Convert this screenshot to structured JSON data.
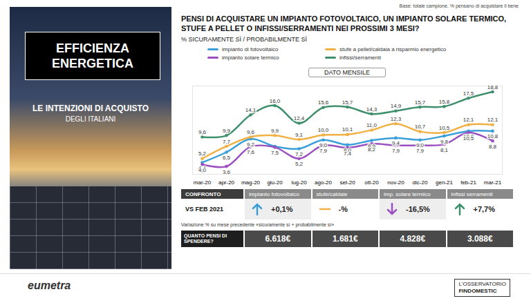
{
  "panel": {
    "title": "EFFICIENZA ENERGETICA",
    "subtitle_lines": [
      "LE INTENZIONI DI ACQUISTO",
      "DEGLI ITALIANI"
    ]
  },
  "base_note": "Base: totale campione. % pensano di acquistare il bene",
  "chart_data": {
    "type": "line",
    "title": "PENSI DI ACQUISTARE UN IMPIANTO FOTOVOLTAICO, UN IMPIANTO SOLARE TERMICO,  STUFE A PELLET O INFISSI/SERRAMENTI NEI PROSSIMI 3 MESI?",
    "subtitle": "% SICURAMENTE SÌ / PROBABILMENTE SÌ",
    "annotation": "DATO MENSILE",
    "categories": [
      "mar-20",
      "apr-20",
      "mag-20",
      "giu-20",
      "lug-20",
      "ago-20",
      "set-20",
      "ott-20",
      "nov-20",
      "dic-20",
      "gen-21",
      "feb-21",
      "mar-21"
    ],
    "ylim": [
      2,
      20
    ],
    "yticks": [],
    "tick_labels": "x",
    "data_labels": true,
    "legend": "top",
    "marker": "circle",
    "series": [
      {
        "name": "impianto di fotovoltaico",
        "color": "#3a9fd9",
        "values": [
          4.4,
          6.5,
          9.2,
          7.7,
          7.2,
          9.0,
          8.0,
          8.9,
          9.4,
          9.0,
          9.8,
          10.8,
          10.8
        ],
        "value_labels": [
          "4,4",
          "6,5",
          "9,2",
          "7,7",
          "7,2",
          "9,0",
          "8,0",
          "8,9",
          "9,4",
          "9,0",
          "9,8",
          "10,8",
          "10,8"
        ]
      },
      {
        "name": "stufe a pellet/caldaia a risparmio energetico",
        "color": "#f0b043",
        "values": [
          5.2,
          7.7,
          9.6,
          9.9,
          9.1,
          10.0,
          10.1,
          11.0,
          12.3,
          10.7,
          10.5,
          12.1,
          12.1
        ],
        "value_labels": [
          "5,2",
          "7,7",
          "9,6",
          "9,9",
          "9,1",
          "10,0",
          "10,1",
          "11,0",
          "12,3",
          "10,7",
          "10,5",
          "12,1",
          "12,1"
        ]
      },
      {
        "name": "impianto solare termico",
        "color": "#9a4fc0",
        "values": [
          4.0,
          3.6,
          7.6,
          7.5,
          5.2,
          7.9,
          7.4,
          8.2,
          7.9,
          7.9,
          8.1,
          10.5,
          8.8
        ],
        "value_labels": [
          "4,0",
          "3,6",
          "7,6",
          "7,5",
          "5,2",
          "7,9",
          "7,4",
          "8,2",
          "7,9",
          "7,9",
          "8,1",
          "10,5",
          "8,8"
        ]
      },
      {
        "name": "infissi/serramenti",
        "color": "#3e8f6c",
        "values": [
          9.6,
          9.9,
          14.1,
          16.0,
          12.4,
          15.6,
          15.7,
          14.3,
          14.9,
          15.7,
          15.8,
          17.5,
          18.8
        ],
        "value_labels": [
          "9,6",
          "9,9",
          "14,1",
          "16,0",
          "12,4",
          "15,6",
          "15,7",
          "14,3",
          "14,9",
          "15,7",
          "15,8",
          "17,5",
          "18,8"
        ]
      }
    ]
  },
  "comparison": {
    "header": "CONFRONTO",
    "columns": [
      "impianto fotovoltaico",
      "stufe/caldaie",
      "imp. solare termico",
      "infissi serramenti"
    ],
    "colors": [
      "#3a9fd9",
      "#f0b043",
      "#9a4fc0",
      "#3e8f6c"
    ],
    "row_label": "VS FEB 2021",
    "values": [
      "+0,1%",
      "-%",
      "-16,5%",
      "+7,7%"
    ]
  },
  "note": "Variazione % su mese precedente «sicuramente sì + probabilmente sì»",
  "spend": {
    "label": "QUANTO PENSI DI SPENDERE?",
    "values": [
      "6.618€",
      "1.681€",
      "4.828€",
      "3.088€"
    ]
  },
  "footer": {
    "left": "eumetra",
    "right_lines": [
      "L'OSSERVATORIO",
      "FINDOMESTIC"
    ]
  }
}
